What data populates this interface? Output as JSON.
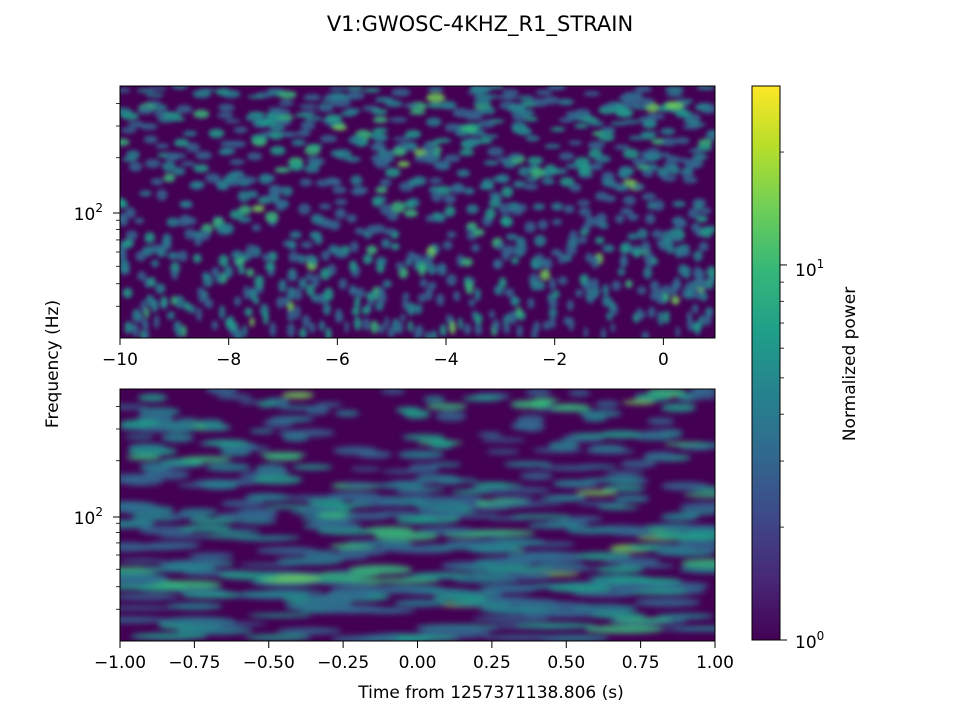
{
  "figure": {
    "title": "V1:GWOSC-4KHZ_R1_STRAIN",
    "ylabel": "Frequency (Hz)",
    "xlabel": "Time from 1257371138.806 (s)"
  },
  "chart_data": [
    {
      "type": "heatmap",
      "panel": "top",
      "x_ticks": [
        "−10",
        "−8",
        "−6",
        "−4",
        "−2",
        "0"
      ],
      "x_tick_values": [
        -10,
        -8,
        -6,
        -4,
        -2,
        0
      ],
      "xlim": [
        -10,
        0.95
      ],
      "y_scale": "log",
      "y_tick_label": {
        "base": "10",
        "exp": "2",
        "value": 100
      },
      "ylim": [
        20,
        500
      ],
      "colormap": "viridis"
    },
    {
      "type": "heatmap",
      "panel": "bottom",
      "x_ticks": [
        "−1.00",
        "−0.75",
        "−0.50",
        "−0.25",
        "0.00",
        "0.25",
        "0.50",
        "0.75",
        "1.00"
      ],
      "x_tick_values": [
        -1.0,
        -0.75,
        -0.5,
        -0.25,
        0.0,
        0.25,
        0.5,
        0.75,
        1.0
      ],
      "xlim": [
        -1.0,
        1.0
      ],
      "y_scale": "log",
      "y_tick_label": {
        "base": "10",
        "exp": "2",
        "value": 100
      },
      "ylim": [
        20,
        500
      ],
      "colormap": "viridis"
    }
  ],
  "colorbar": {
    "label": "Normalized power",
    "scale": "log",
    "range": [
      1,
      30
    ],
    "ticks": [
      {
        "value": 1,
        "base": "10",
        "exp": "0"
      },
      {
        "value": 10,
        "base": "10",
        "exp": "1"
      }
    ],
    "colors": [
      "#440154",
      "#482878",
      "#3e4989",
      "#31688e",
      "#26828e",
      "#1f9e89",
      "#35b779",
      "#6ece58",
      "#b5de2b",
      "#fde725"
    ]
  }
}
